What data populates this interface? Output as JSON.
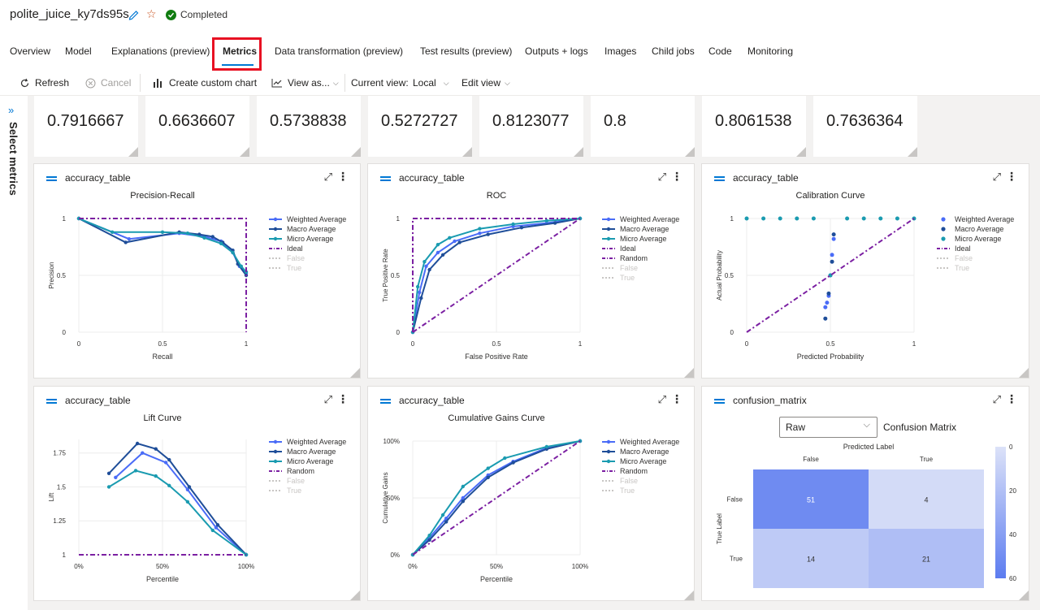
{
  "job": {
    "title": "polite_juice_ky7ds95s",
    "status": "Completed"
  },
  "tabs": [
    {
      "label": "Overview"
    },
    {
      "label": "Model"
    },
    {
      "label": "Explanations (preview)"
    },
    {
      "label": "Metrics"
    },
    {
      "label": "Data transformation (preview)"
    },
    {
      "label": "Test results (preview)"
    },
    {
      "label": "Outputs + logs"
    },
    {
      "label": "Images"
    },
    {
      "label": "Child jobs"
    },
    {
      "label": "Code"
    },
    {
      "label": "Monitoring"
    }
  ],
  "active_tab": "Metrics",
  "toolbar": {
    "refresh": "Refresh",
    "cancel": "Cancel",
    "create_chart": "Create custom chart",
    "view_as": "View as...",
    "current_view_label": "Current view:",
    "current_view": "Local",
    "edit_view": "Edit view"
  },
  "side_panel": {
    "label": "Select metrics"
  },
  "metrics": [
    "0.7916667",
    "0.6636607",
    "0.5738838",
    "0.5272727",
    "0.8123077",
    "0.8",
    "0.8061538",
    "0.7636364"
  ],
  "colors": {
    "weighted": "#4a6cf7",
    "macro": "#1f4e99",
    "micro": "#1a9bb0",
    "ideal": "#7b1fa2",
    "legend_off": "#c8c6c4"
  },
  "charts": {
    "pr": {
      "card_title": "accuracy_table",
      "title": "Precision-Recall",
      "xlabel": "Recall",
      "ylabel": "Precision",
      "xticks": [
        "0",
        "0.5",
        "1"
      ],
      "yticks": [
        "0",
        "0.5",
        "1"
      ],
      "legend": [
        "Weighted Average",
        "Macro Average",
        "Micro Average",
        "Ideal",
        "False",
        "True"
      ]
    },
    "roc": {
      "card_title": "accuracy_table",
      "title": "ROC",
      "xlabel": "False Positive Rate",
      "ylabel": "True Positive Rate",
      "xticks": [
        "0",
        "0.5",
        "1"
      ],
      "yticks": [
        "0",
        "0.5",
        "1"
      ],
      "legend": [
        "Weighted Average",
        "Macro Average",
        "Micro Average",
        "Ideal",
        "Random",
        "False",
        "True"
      ]
    },
    "calib": {
      "card_title": "accuracy_table",
      "title": "Calibration Curve",
      "xlabel": "Predicted Probability",
      "ylabel": "Actual Probability",
      "xticks": [
        "0",
        "0.5",
        "1"
      ],
      "yticks": [
        "0",
        "0.5",
        "1"
      ],
      "legend": [
        "Weighted Average",
        "Macro Average",
        "Micro Average",
        "Ideal",
        "False",
        "True"
      ]
    },
    "lift": {
      "card_title": "accuracy_table",
      "title": "Lift Curve",
      "xlabel": "Percentile",
      "ylabel": "Lift",
      "xticks": [
        "0%",
        "50%",
        "100%"
      ],
      "yticks": [
        "1",
        "1.25",
        "1.5",
        "1.75"
      ],
      "legend": [
        "Weighted Average",
        "Macro Average",
        "Micro Average",
        "Random",
        "False",
        "True"
      ]
    },
    "gains": {
      "card_title": "accuracy_table",
      "title": "Cumulative Gains Curve",
      "xlabel": "Percentile",
      "ylabel": "Cumulative Gains",
      "xticks": [
        "0%",
        "50%",
        "100%"
      ],
      "yticks": [
        "0%",
        "50%",
        "100%"
      ],
      "legend": [
        "Weighted Average",
        "Macro Average",
        "Micro Average",
        "Random",
        "False",
        "True"
      ]
    },
    "cm": {
      "card_title": "confusion_matrix",
      "select_value": "Raw",
      "title": "Confusion Matrix",
      "predicted_label": "Predicted Label",
      "true_label": "True Label",
      "col_labels": [
        "False",
        "True"
      ],
      "row_labels": [
        "False",
        "True"
      ],
      "cells": [
        [
          "51",
          "4"
        ],
        [
          "14",
          "21"
        ]
      ],
      "scale_ticks": [
        "0",
        "20",
        "40",
        "60"
      ]
    }
  },
  "chart_data": [
    {
      "type": "line",
      "title": "Precision-Recall",
      "xlabel": "Recall",
      "ylabel": "Precision",
      "xlim": [
        0,
        1
      ],
      "ylim": [
        0,
        1
      ],
      "series": [
        {
          "name": "Weighted Average",
          "x": [
            0,
            0.3,
            0.6,
            0.75,
            0.85,
            0.92,
            0.96,
            1
          ],
          "y": [
            1,
            0.82,
            0.87,
            0.84,
            0.8,
            0.7,
            0.58,
            0.52
          ]
        },
        {
          "name": "Macro Average",
          "x": [
            0,
            0.28,
            0.6,
            0.72,
            0.8,
            0.86,
            0.92,
            0.95,
            1
          ],
          "y": [
            1,
            0.79,
            0.88,
            0.86,
            0.84,
            0.79,
            0.72,
            0.6,
            0.5
          ]
        },
        {
          "name": "Micro Average",
          "x": [
            0,
            0.2,
            0.5,
            0.65,
            0.75,
            0.85,
            0.92,
            0.97,
            1
          ],
          "y": [
            1,
            0.88,
            0.88,
            0.87,
            0.83,
            0.78,
            0.7,
            0.58,
            0.53
          ]
        },
        {
          "name": "Ideal",
          "x": [
            0,
            1,
            1
          ],
          "y": [
            1,
            1,
            0
          ]
        }
      ]
    },
    {
      "type": "line",
      "title": "ROC",
      "xlabel": "False Positive Rate",
      "ylabel": "True Positive Rate",
      "xlim": [
        0,
        1
      ],
      "ylim": [
        0,
        1
      ],
      "series": [
        {
          "name": "Weighted Average",
          "x": [
            0,
            0.04,
            0.08,
            0.15,
            0.25,
            0.4,
            0.6,
            0.8,
            1
          ],
          "y": [
            0,
            0.35,
            0.58,
            0.7,
            0.8,
            0.87,
            0.93,
            0.96,
            1
          ]
        },
        {
          "name": "Macro Average",
          "x": [
            0,
            0.05,
            0.1,
            0.18,
            0.28,
            0.45,
            0.65,
            0.85,
            1
          ],
          "y": [
            0,
            0.3,
            0.55,
            0.68,
            0.79,
            0.86,
            0.92,
            0.96,
            1
          ]
        },
        {
          "name": "Micro Average",
          "x": [
            0,
            0.03,
            0.07,
            0.15,
            0.22,
            0.4,
            0.6,
            0.8,
            1
          ],
          "y": [
            0,
            0.4,
            0.62,
            0.77,
            0.83,
            0.91,
            0.95,
            0.98,
            1
          ]
        },
        {
          "name": "Ideal",
          "x": [
            0,
            0,
            1
          ],
          "y": [
            0,
            1,
            1
          ]
        },
        {
          "name": "Random",
          "x": [
            0,
            1
          ],
          "y": [
            0,
            1
          ]
        }
      ]
    },
    {
      "type": "scatter",
      "title": "Calibration Curve",
      "xlabel": "Predicted Probability",
      "ylabel": "Actual Probability",
      "xlim": [
        0,
        1
      ],
      "ylim": [
        0,
        1
      ],
      "series": [
        {
          "name": "Weighted Average",
          "x": [
            0.47,
            0.48,
            0.49,
            0.5,
            0.51,
            0.52
          ],
          "y": [
            0.22,
            0.26,
            0.32,
            0.5,
            0.68,
            0.82
          ]
        },
        {
          "name": "Macro Average",
          "x": [
            0.47,
            0.49,
            0.51,
            0.52
          ],
          "y": [
            0.12,
            0.34,
            0.62,
            0.86
          ]
        },
        {
          "name": "Micro Average",
          "x": [
            0,
            0.1,
            0.2,
            0.3,
            0.4,
            0.5,
            0.6,
            0.7,
            0.8,
            0.9,
            1
          ],
          "y": [
            1,
            1,
            1,
            1,
            1,
            0.5,
            1,
            1,
            1,
            1,
            1
          ]
        },
        {
          "name": "Ideal",
          "x": [
            0,
            1
          ],
          "y": [
            0,
            1
          ]
        }
      ]
    },
    {
      "type": "line",
      "title": "Lift Curve",
      "xlabel": "Percentile",
      "ylabel": "Lift",
      "xlim": [
        0,
        1
      ],
      "ylim": [
        1,
        1.85
      ],
      "series": [
        {
          "name": "Weighted Average",
          "x": [
            0.22,
            0.38,
            0.52,
            0.65,
            0.82,
            1
          ],
          "y": [
            1.57,
            1.75,
            1.68,
            1.48,
            1.2,
            1
          ]
        },
        {
          "name": "Macro Average",
          "x": [
            0.18,
            0.35,
            0.46,
            0.54,
            0.66,
            0.83,
            1
          ],
          "y": [
            1.6,
            1.82,
            1.78,
            1.7,
            1.5,
            1.22,
            1
          ]
        },
        {
          "name": "Micro Average",
          "x": [
            0.18,
            0.34,
            0.46,
            0.54,
            0.65,
            0.8,
            1
          ],
          "y": [
            1.5,
            1.62,
            1.58,
            1.51,
            1.39,
            1.18,
            1
          ]
        },
        {
          "name": "Random",
          "x": [
            0,
            1
          ],
          "y": [
            1,
            1
          ]
        }
      ]
    },
    {
      "type": "line",
      "title": "Cumulative Gains Curve",
      "xlabel": "Percentile",
      "ylabel": "Cumulative Gains",
      "xlim": [
        0,
        1
      ],
      "ylim": [
        0,
        1
      ],
      "series": [
        {
          "name": "Weighted Average",
          "x": [
            0,
            0.1,
            0.2,
            0.3,
            0.45,
            0.6,
            0.8,
            1
          ],
          "y": [
            0,
            0.15,
            0.32,
            0.5,
            0.7,
            0.82,
            0.94,
            1
          ]
        },
        {
          "name": "Macro Average",
          "x": [
            0,
            0.1,
            0.2,
            0.3,
            0.45,
            0.6,
            0.8,
            1
          ],
          "y": [
            0,
            0.13,
            0.29,
            0.47,
            0.68,
            0.81,
            0.93,
            1
          ]
        },
        {
          "name": "Micro Average",
          "x": [
            0,
            0.1,
            0.18,
            0.3,
            0.45,
            0.55,
            0.8,
            1
          ],
          "y": [
            0,
            0.17,
            0.35,
            0.6,
            0.76,
            0.85,
            0.95,
            1
          ]
        },
        {
          "name": "Random",
          "x": [
            0,
            1
          ],
          "y": [
            0,
            1
          ]
        }
      ]
    },
    {
      "type": "heatmap",
      "title": "Confusion Matrix",
      "xlabel": "Predicted Label",
      "ylabel": "True Label",
      "categories": [
        "False",
        "True"
      ],
      "values": [
        [
          51,
          4
        ],
        [
          14,
          21
        ]
      ],
      "zlim": [
        0,
        60
      ]
    }
  ]
}
